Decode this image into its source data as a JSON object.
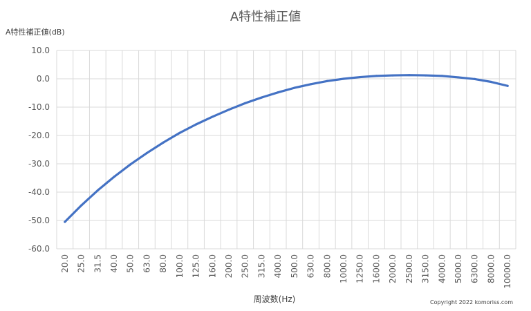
{
  "chart_data": {
    "type": "line",
    "title": "A特性補正値",
    "ylabel": "A特性補正値(dB)",
    "xlabel": "周波数(Hz)",
    "ylim": [
      -60,
      10
    ],
    "yticks": [
      10,
      0,
      -10,
      -20,
      -30,
      -40,
      -50,
      -60
    ],
    "ytick_labels": [
      "10.0",
      "0.0",
      "-10.0",
      "-20.0",
      "-30.0",
      "-40.0",
      "-50.0",
      "-60.0"
    ],
    "grid": true,
    "legend": "none",
    "categories": [
      "20.0",
      "25.0",
      "31.5",
      "40.0",
      "50.0",
      "63.0",
      "80.0",
      "100.0",
      "125.0",
      "160.0",
      "200.0",
      "250.0",
      "315.0",
      "400.0",
      "500.0",
      "630.0",
      "800.0",
      "1000.0",
      "1250.0",
      "1600.0",
      "2000.0",
      "2500.0",
      "3150.0",
      "4000.0",
      "5000.0",
      "6300.0",
      "8000.0",
      "10000.0"
    ],
    "series": [
      {
        "color": "#4472C4",
        "values": [
          -50.5,
          -44.7,
          -39.4,
          -34.6,
          -30.2,
          -26.2,
          -22.5,
          -19.1,
          -16.1,
          -13.4,
          -10.9,
          -8.6,
          -6.6,
          -4.8,
          -3.2,
          -1.9,
          -0.8,
          0.0,
          0.6,
          1.0,
          1.2,
          1.3,
          1.2,
          1.0,
          0.5,
          -0.1,
          -1.1,
          -2.5
        ]
      }
    ]
  },
  "copyright": "Copyright 2022 komoriss.com"
}
